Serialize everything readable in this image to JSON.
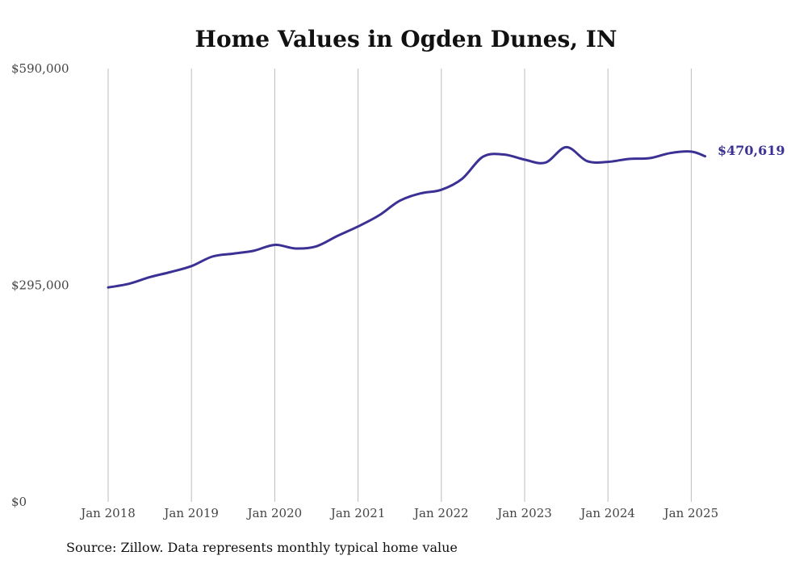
{
  "chart_data": {
    "type": "line",
    "title": "Home Values in Ogden Dunes, IN",
    "source": "Source: Zillow. Data represents monthly typical home value",
    "line_color": "#3b3194",
    "grid": "vertical",
    "ylim": [
      0,
      590000
    ],
    "y_ticks": [
      {
        "value": 0,
        "label": "$0"
      },
      {
        "value": 295000,
        "label": "$295,000"
      },
      {
        "value": 590000,
        "label": "$590,000"
      }
    ],
    "x_ticks": [
      {
        "value": "2018-01",
        "label": "Jan 2018"
      },
      {
        "value": "2019-01",
        "label": "Jan 2019"
      },
      {
        "value": "2020-01",
        "label": "Jan 2020"
      },
      {
        "value": "2021-01",
        "label": "Jan 2021"
      },
      {
        "value": "2022-01",
        "label": "Jan 2022"
      },
      {
        "value": "2023-01",
        "label": "Jan 2023"
      },
      {
        "value": "2024-01",
        "label": "Jan 2024"
      },
      {
        "value": "2025-01",
        "label": "Jan 2025"
      }
    ],
    "end_label": "$470,619",
    "series": [
      {
        "x": [
          "2018-01",
          "2018-04",
          "2018-07",
          "2018-10",
          "2019-01",
          "2019-04",
          "2019-07",
          "2019-10",
          "2020-01",
          "2020-04",
          "2020-07",
          "2020-10",
          "2021-01",
          "2021-04",
          "2021-07",
          "2021-10",
          "2022-01",
          "2022-04",
          "2022-07",
          "2022-10",
          "2023-01",
          "2023-04",
          "2023-07",
          "2023-10",
          "2024-01",
          "2024-04",
          "2024-07",
          "2024-10",
          "2025-01",
          "2025-03"
        ],
        "values": [
          292000,
          297000,
          306000,
          313000,
          321000,
          334000,
          338000,
          342000,
          350000,
          345000,
          348000,
          362000,
          375000,
          390000,
          410000,
          420000,
          425000,
          440000,
          470000,
          473000,
          466000,
          462000,
          483000,
          464000,
          463000,
          467000,
          468000,
          475000,
          477000,
          470619
        ]
      }
    ]
  }
}
